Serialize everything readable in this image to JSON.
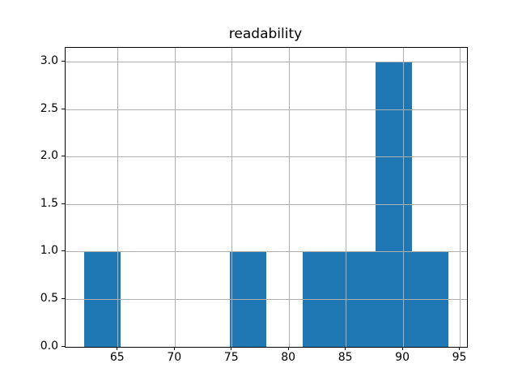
{
  "chart_data": {
    "type": "bar",
    "subtype": "histogram",
    "title": "readability",
    "bin_edges": [
      62.0,
      65.2,
      68.4,
      71.6,
      74.8,
      78.0,
      81.2,
      84.4,
      87.6,
      90.8,
      94.0
    ],
    "counts": [
      1,
      0,
      0,
      0,
      1,
      0,
      1,
      1,
      3,
      1
    ],
    "xlabel": "",
    "ylabel": "",
    "xlim": [
      60.4,
      95.6
    ],
    "ylim": [
      0,
      3.15
    ],
    "xticks": [
      65,
      70,
      75,
      80,
      85,
      90,
      95
    ],
    "yticks": [
      0.0,
      0.5,
      1.0,
      1.5,
      2.0,
      2.5,
      3.0
    ],
    "xtick_labels": [
      "65",
      "70",
      "75",
      "80",
      "85",
      "90",
      "95"
    ],
    "ytick_labels": [
      "0.0",
      "0.5",
      "1.0",
      "1.5",
      "2.0",
      "2.5",
      "3.0"
    ],
    "grid": true,
    "grid_over_bars": true,
    "legend": "none",
    "colors": {
      "bar": "#1f77b4",
      "grid": "#b0b0b0",
      "spine": "#000000",
      "text": "#000000",
      "background": "#ffffff"
    }
  }
}
